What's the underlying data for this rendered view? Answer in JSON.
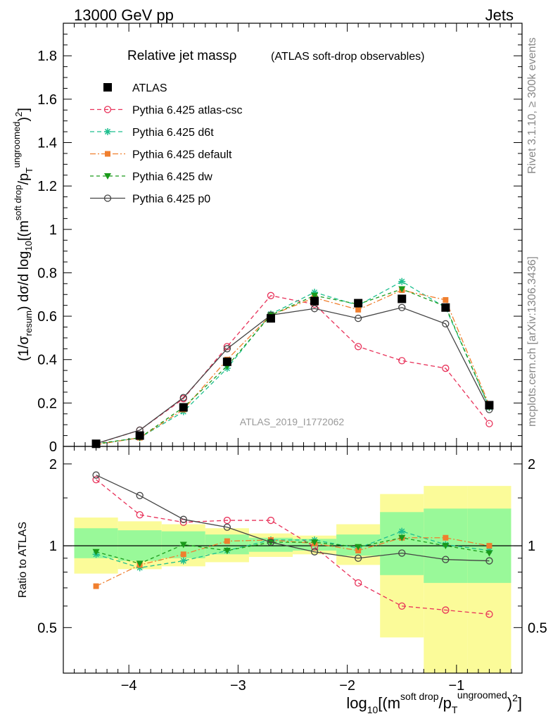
{
  "header": {
    "left": "13000 GeV pp",
    "right": "Jets"
  },
  "side_labels": {
    "rivet": "Rivet 3.1.10, ≥ 300k events",
    "mcplots": "mcplots.cern.ch [arXiv:1306.3436]"
  },
  "colors": {
    "ATLAS": "#000000",
    "Pythia 6.425 atlas-csc": "#e8325a",
    "Pythia 6.425 d6t": "#1fbf8f",
    "Pythia 6.425 default": "#f07f2e",
    "Pythia 6.425 dw": "#1a9a1a",
    "Pythia 6.425 p0": "#444444",
    "band_inner": "#99f999",
    "band_outer": "#fbfb99"
  },
  "chart_data": [
    {
      "type": "scatter",
      "title": "Relative jet massρ",
      "subtitle": "(ATLAS soft-drop observables)",
      "analysis_label": "ATLAS_2019_I1772062",
      "ylabel": "(1/σresum) dσ/d log10[(msoft drop/pTungroomed)2]",
      "xlim": [
        -4.6,
        -0.4
      ],
      "ylim": [
        0,
        1.95
      ],
      "yticks": [
        "0",
        "0.2",
        "0.4",
        "0.6",
        "0.8",
        "1",
        "1.2",
        "1.4",
        "1.6",
        "1.8"
      ],
      "legend_position": "top-left",
      "x": [
        -4.3,
        -3.9,
        -3.5,
        -3.1,
        -2.7,
        -2.3,
        -1.9,
        -1.5,
        -1.1,
        -0.7
      ],
      "series": [
        {
          "name": "ATLAS",
          "values": [
            0.012,
            0.05,
            0.18,
            0.39,
            0.59,
            0.67,
            0.66,
            0.68,
            0.64,
            0.19
          ]
        },
        {
          "name": "Pythia 6.425 atlas-csc",
          "values": [
            0.012,
            0.075,
            0.22,
            0.46,
            0.695,
            0.655,
            0.46,
            0.395,
            0.36,
            0.105
          ]
        },
        {
          "name": "Pythia 6.425 d6t",
          "values": [
            0.01,
            0.04,
            0.16,
            0.36,
            0.61,
            0.71,
            0.65,
            0.76,
            0.64,
            0.18
          ]
        },
        {
          "name": "Pythia 6.425 default",
          "values": [
            0.008,
            0.04,
            0.17,
            0.4,
            0.605,
            0.685,
            0.63,
            0.72,
            0.675,
            0.19
          ]
        },
        {
          "name": "Pythia 6.425 dw",
          "values": [
            0.012,
            0.04,
            0.18,
            0.37,
            0.605,
            0.695,
            0.655,
            0.725,
            0.645,
            0.18
          ]
        },
        {
          "name": "Pythia 6.425 p0",
          "values": [
            0.013,
            0.075,
            0.225,
            0.45,
            0.605,
            0.635,
            0.59,
            0.64,
            0.565,
            0.17
          ]
        }
      ]
    },
    {
      "type": "scatter",
      "ylabel": "Ratio to ATLAS",
      "xlabel": "log10[(msoft drop/pTungroomed)2]",
      "xlim": [
        -4.6,
        -0.4
      ],
      "ylim": [
        0.34,
        2.32
      ],
      "yticks": [
        "0.5",
        "1",
        "2"
      ],
      "xticks": [
        "−4",
        "−3",
        "−2",
        "−1"
      ],
      "x": [
        -4.3,
        -3.9,
        -3.5,
        -3.1,
        -2.7,
        -2.3,
        -1.9,
        -1.5,
        -1.1,
        -0.7
      ],
      "bins": [
        [
          -4.5,
          -4.1
        ],
        [
          -4.1,
          -3.7
        ],
        [
          -3.7,
          -3.3
        ],
        [
          -3.3,
          -2.9
        ],
        [
          -2.9,
          -2.5
        ],
        [
          -2.5,
          -2.1
        ],
        [
          -2.1,
          -1.7
        ],
        [
          -1.7,
          -1.3
        ],
        [
          -1.3,
          -0.9
        ],
        [
          -0.9,
          -0.5
        ]
      ],
      "band_inner": [
        [
          0.9,
          1.16
        ],
        [
          0.88,
          1.14
        ],
        [
          0.9,
          1.13
        ],
        [
          0.93,
          1.1
        ],
        [
          0.95,
          1.07
        ],
        [
          0.96,
          1.06
        ],
        [
          0.92,
          1.1
        ],
        [
          0.78,
          1.33
        ],
        [
          0.73,
          1.37
        ],
        [
          0.73,
          1.37
        ]
      ],
      "band_outer": [
        [
          0.79,
          1.27
        ],
        [
          0.82,
          1.23
        ],
        [
          0.84,
          1.2
        ],
        [
          0.87,
          1.16
        ],
        [
          0.91,
          1.11
        ],
        [
          0.93,
          1.09
        ],
        [
          0.85,
          1.2
        ],
        [
          0.46,
          1.55
        ],
        [
          0.34,
          1.66
        ],
        [
          0.34,
          1.66
        ]
      ],
      "series": [
        {
          "name": "Pythia 6.425 atlas-csc",
          "values": [
            1.75,
            1.3,
            1.22,
            1.24,
            1.24,
            0.99,
            0.73,
            0.6,
            0.58,
            0.56
          ]
        },
        {
          "name": "Pythia 6.425 d6t",
          "values": [
            0.93,
            0.83,
            0.88,
            0.96,
            1.05,
            1.05,
            0.98,
            1.13,
            1.01,
            0.96
          ]
        },
        {
          "name": "Pythia 6.425 default",
          "values": [
            0.71,
            0.85,
            0.93,
            1.04,
            1.05,
            1.02,
            0.96,
            1.07,
            1.07,
            1.0
          ]
        },
        {
          "name": "Pythia 6.425 dw",
          "values": [
            0.95,
            0.86,
            1.01,
            0.96,
            1.03,
            1.03,
            0.99,
            1.07,
            1.0,
            0.94
          ]
        },
        {
          "name": "Pythia 6.425 p0",
          "values": [
            1.82,
            1.53,
            1.25,
            1.17,
            1.03,
            0.95,
            0.9,
            0.94,
            0.89,
            0.88
          ]
        }
      ]
    }
  ]
}
